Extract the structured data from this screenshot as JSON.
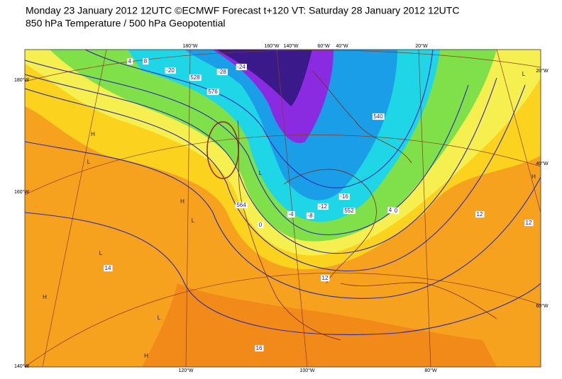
{
  "header": {
    "title": "Monday 23 January 2012 12UTC ©ECMWF Forecast t+120 VT: Saturday 28 January 2012 12UTC",
    "subtitle": "850 hPa Temperature / 500 hPa Geopotential"
  },
  "map": {
    "lon_labels_top": [
      "180°W",
      "160°W",
      "140°W",
      "60°W",
      "40°W",
      "20°W"
    ],
    "lon_labels_bottom": [
      "120°W",
      "100°W",
      "80°W"
    ],
    "lat_labels_left": [
      "180°W",
      "160°W",
      "140°W"
    ],
    "lat_labels_right": [
      "20°W",
      "40°W",
      "60°W"
    ],
    "contour_labels": [
      "12",
      "16",
      "14",
      "12",
      "12",
      "0",
      "-4",
      "-8",
      "-12",
      "-16",
      "4",
      "0",
      "576",
      "564",
      "552",
      "540",
      "528",
      "-20",
      "-24",
      "-28",
      "8",
      "4"
    ],
    "pressure_centers": [
      "H",
      "L",
      "H",
      "L",
      "L",
      "H",
      "L",
      "H",
      "L",
      "H",
      "L"
    ]
  }
}
